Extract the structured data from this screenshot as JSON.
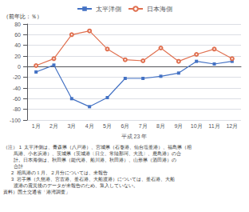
{
  "chart_data": {
    "type": "line",
    "xlabel": "平成 23 年",
    "ylabel": "（前年比：％）",
    "categories": [
      "1月",
      "2月",
      "3月",
      "4月",
      "5月",
      "6月",
      "7月",
      "8月",
      "9月",
      "10月",
      "11月",
      "12月"
    ],
    "series": [
      {
        "name": "太平洋側",
        "color": "#4472C4",
        "marker": "square",
        "values": [
          -10,
          3,
          -60,
          -75,
          -58,
          -22,
          -22,
          -18,
          -12,
          10,
          5,
          10
        ]
      },
      {
        "name": "日本海側",
        "color": "#E07050",
        "marker": "circle",
        "values": [
          2,
          15,
          60,
          67,
          33,
          13,
          11,
          35,
          10,
          23,
          33,
          15
        ]
      }
    ],
    "ylim": [
      -100,
      80
    ],
    "yticks": [
      -100,
      -80,
      -60,
      -40,
      -20,
      0,
      20,
      40,
      60,
      80
    ],
    "grid": true,
    "legend": "top",
    "annotations": [
      "（注） 1  太平洋側は、青森県（八戸港）、宮城県（石巻港、仙台塩釜港）、福島県（相",
      "        馬港、小名浜港）、茨城県（茨城港〔日立、常陸那珂、大洗〕、鹿島港）の合",
      "        計。日本海側は、秋田県（能代港、船川港、秋田港）、山形県（酒田港）の",
      "        合計",
      "      2  相馬港の１月、２月分については、未報告",
      "      3  岩手県（久慈港、宮古港、釜石港、大船渡港）については、釜石港、大船",
      "        渡港の震災後のデータが未報告のため、算入していない。",
      "資料）国土交通省「港湾調査」"
    ]
  }
}
